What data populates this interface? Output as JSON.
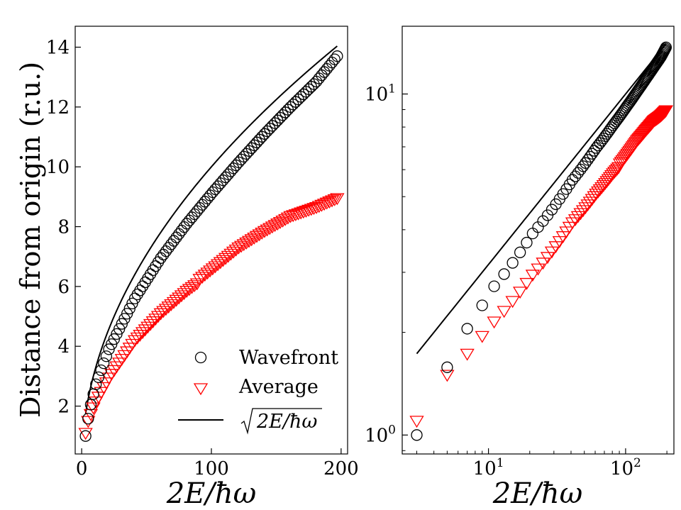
{
  "chart_data": [
    {
      "type": "scatter",
      "panel": "linear",
      "xlabel": "2E/ħω",
      "ylabel": "Distance from origin (r.u.)",
      "xlim": [
        -5,
        205
      ],
      "ylim": [
        0.4,
        14.7
      ],
      "xticks": [
        0,
        100,
        200
      ],
      "yticks": [
        2,
        4,
        6,
        8,
        10,
        12,
        14
      ],
      "xtick_labels": [
        "0",
        "100",
        "200"
      ],
      "ytick_labels": [
        "2",
        "4",
        "6",
        "8",
        "10",
        "12",
        "14"
      ],
      "xscale": "linear",
      "yscale": "linear",
      "grid": false,
      "legend_position": "lower-right",
      "series": [
        {
          "name": "Wavefront",
          "marker": "circle",
          "color": "#000000",
          "x_start": 3,
          "x_step": 2,
          "count": 98,
          "x": [
            3,
            5,
            7,
            9,
            11,
            21,
            41,
            61,
            81,
            101,
            121,
            141,
            161,
            181,
            197
          ],
          "y": [
            1.0,
            1.58,
            2.05,
            2.4,
            2.73,
            3.9,
            5.6,
            6.95,
            8.1,
            9.15,
            10.15,
            11.1,
            12.0,
            12.85,
            13.7
          ]
        },
        {
          "name": "Average",
          "marker": "triangle-down",
          "color": "#ff0000",
          "x_start": 3,
          "x_step": 2,
          "count": 98,
          "x": [
            3,
            5,
            7,
            9,
            11,
            21,
            41,
            61,
            81,
            89,
            91,
            101,
            121,
            141,
            161,
            181,
            197
          ],
          "y": [
            1.1,
            1.5,
            1.73,
            1.95,
            2.15,
            2.95,
            4.2,
            5.1,
            5.85,
            6.1,
            6.25,
            6.6,
            7.3,
            7.85,
            8.35,
            8.65,
            8.95
          ]
        },
        {
          "name": "√(2E/ħω)",
          "label_radicand": "2E/ħω",
          "marker": "line",
          "color": "#000000",
          "x_range": [
            3,
            197
          ],
          "function": "sqrt"
        }
      ]
    },
    {
      "type": "scatter",
      "panel": "log-log",
      "xlabel": "2E/ħω",
      "ylabel": "",
      "xlim": [
        2.35,
        225
      ],
      "ylim": [
        0.88,
        15.8
      ],
      "xscale": "log",
      "yscale": "log",
      "xticks": [
        10,
        100
      ],
      "yticks": [
        1,
        10
      ],
      "xtick_labels": [
        {
          "base": "10",
          "exp": "1"
        },
        {
          "base": "10",
          "exp": "2"
        }
      ],
      "ytick_labels": [
        {
          "base": "10",
          "exp": "0"
        },
        {
          "base": "10",
          "exp": "1"
        }
      ],
      "grid": false,
      "note": "same three series as linear panel"
    }
  ]
}
